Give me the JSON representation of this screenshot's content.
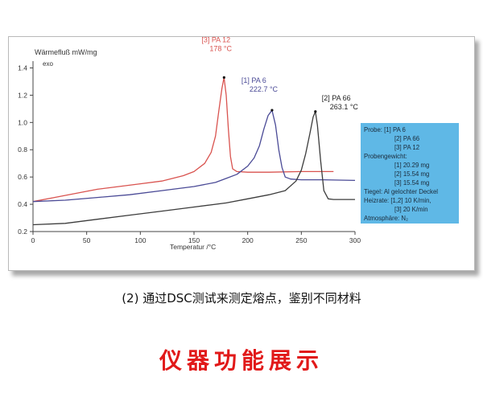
{
  "chart_data": {
    "type": "line",
    "ylabel": "Wärmefluß  mW/mg",
    "ylabel_note": "exo",
    "xlabel": "Temperatur /°C",
    "xlim": [
      0,
      300
    ],
    "ylim": [
      0.2,
      1.45
    ],
    "x_ticks": [
      0,
      50,
      100,
      150,
      200,
      250,
      300
    ],
    "y_ticks": [
      0.2,
      0.4,
      0.6,
      0.8,
      1.0,
      1.2,
      1.4
    ],
    "x_tick_labels": [
      "0",
      "50",
      "100",
      "150",
      "200",
      "250",
      "300"
    ],
    "y_tick_labels": [
      "0.2",
      "0.4",
      "0.6",
      "0.8",
      "1.0",
      "1.2",
      "1.4"
    ],
    "series": [
      {
        "name": "[3] PA 12",
        "color": "#d9534f",
        "x": [
          0,
          20,
          40,
          60,
          80,
          100,
          120,
          140,
          150,
          160,
          166,
          170,
          173,
          176,
          178,
          180,
          182,
          184,
          186,
          190,
          200,
          220,
          250,
          280
        ],
        "y": [
          0.42,
          0.45,
          0.48,
          0.51,
          0.53,
          0.55,
          0.57,
          0.61,
          0.64,
          0.7,
          0.78,
          0.9,
          1.08,
          1.25,
          1.33,
          1.2,
          0.95,
          0.75,
          0.66,
          0.64,
          0.635,
          0.635,
          0.64,
          0.64
        ]
      },
      {
        "name": "[1] PA 6",
        "color": "#4a4a96",
        "x": [
          0,
          30,
          60,
          90,
          120,
          150,
          170,
          180,
          190,
          200,
          206,
          211,
          215,
          219,
          222.7,
          226,
          229,
          232,
          235,
          240,
          250,
          270,
          300
        ],
        "y": [
          0.42,
          0.43,
          0.45,
          0.47,
          0.5,
          0.53,
          0.56,
          0.59,
          0.62,
          0.68,
          0.74,
          0.83,
          0.95,
          1.05,
          1.09,
          0.98,
          0.8,
          0.67,
          0.6,
          0.585,
          0.58,
          0.58,
          0.575
        ]
      },
      {
        "name": "[2] PA 66",
        "color": "#3c3c3c",
        "x": [
          0,
          30,
          60,
          90,
          120,
          150,
          180,
          200,
          220,
          235,
          245,
          250,
          254,
          258,
          261,
          263.1,
          265,
          268,
          271,
          275,
          280,
          300
        ],
        "y": [
          0.25,
          0.26,
          0.29,
          0.32,
          0.35,
          0.38,
          0.41,
          0.44,
          0.47,
          0.5,
          0.57,
          0.65,
          0.77,
          0.92,
          1.04,
          1.08,
          0.98,
          0.72,
          0.5,
          0.44,
          0.435,
          0.435
        ]
      }
    ],
    "annotations": [
      {
        "line1": "[3] PA 12",
        "line2": "178 °C",
        "color": "#d9534f",
        "x": 178,
        "y": 1.33
      },
      {
        "line1": "[1] PA 6",
        "line2": "222.7 °C",
        "color": "#4a4a96",
        "x": 222.7,
        "y": 1.09
      },
      {
        "line1": "[2] PA 66",
        "line2": "263.1 °C",
        "color": "#222222",
        "x": 263.1,
        "y": 1.08
      }
    ],
    "info_box": {
      "background": "#5fb8e6",
      "lines": [
        "Probe:  [1] PA 6",
        "[2] PA 66",
        "[3] PA 12",
        "Probengewicht:",
        "[1] 20.29 mg",
        "[2] 15.54 mg",
        "[3] 15.54 mg",
        "Tiegel:   Al gelochter Deckel",
        "Heizrate:        [1,2] 10 K/min,",
        "[3] 20 K/min",
        "Atmosphäre: N₂"
      ]
    }
  },
  "caption": "(2) 通过DSC测试来测定熔点，鉴别不同材料",
  "page_title": "仪器功能展示"
}
